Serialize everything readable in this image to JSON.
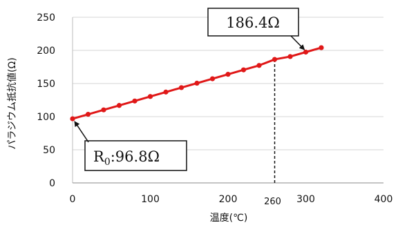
{
  "chart_data": {
    "type": "line",
    "xlabel": "温度(℃)",
    "ylabel": "パラジウム抵抗値(Ω)",
    "xlim": [
      0,
      400
    ],
    "ylim": [
      0,
      250
    ],
    "xticks": [
      "0",
      "100",
      "200",
      "300",
      "400"
    ],
    "yticks": [
      "0",
      "50",
      "100",
      "150",
      "200",
      "250"
    ],
    "grid": true,
    "series": [
      {
        "color": "#e01818",
        "x": [
          0,
          20,
          40,
          60,
          80,
          100,
          120,
          140,
          160,
          180,
          200,
          220,
          240,
          260,
          280,
          300,
          320
        ],
        "y": [
          96.8,
          103.5,
          110.2,
          116.9,
          123.6,
          130.4,
          137.1,
          143.8,
          150.5,
          157.2,
          163.9,
          170.6,
          177.3,
          186.4,
          190.7,
          197.4,
          204.1
        ]
      }
    ],
    "marker_line": {
      "x": 260,
      "label": "260"
    },
    "annotations": [
      {
        "text": "186.4Ω",
        "x": 300,
        "y": 198
      },
      {
        "text": "R0:96.8Ω",
        "x": 0,
        "y": 96.8
      }
    ]
  }
}
